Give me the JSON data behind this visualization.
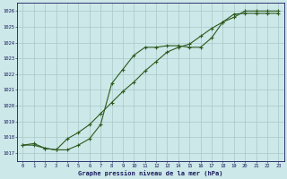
{
  "xlabel": "Graphe pression niveau de la mer (hPa)",
  "ylim": [
    1016.5,
    1026.5
  ],
  "xlim": [
    -0.5,
    23.5
  ],
  "yticks": [
    1017,
    1018,
    1019,
    1020,
    1021,
    1022,
    1023,
    1024,
    1025,
    1026
  ],
  "xticks": [
    0,
    1,
    2,
    3,
    4,
    5,
    6,
    7,
    8,
    9,
    10,
    11,
    12,
    13,
    14,
    15,
    16,
    17,
    18,
    19,
    20,
    21,
    22,
    23
  ],
  "bg_color": "#cce8e8",
  "line_color": "#2d5a1e",
  "grid_color": "#a8c8c8",
  "line1_x": [
    0,
    1,
    2,
    3,
    4,
    5,
    6,
    7,
    8,
    9,
    10,
    11,
    12,
    13,
    14,
    15,
    16,
    17,
    18,
    19,
    20,
    21,
    22,
    23
  ],
  "line1_y": [
    1017.5,
    1017.5,
    1017.3,
    1017.2,
    1017.2,
    1017.5,
    1017.9,
    1018.8,
    1021.4,
    1022.3,
    1023.2,
    1023.7,
    1023.7,
    1023.8,
    1023.8,
    1023.7,
    1023.7,
    1024.3,
    1025.3,
    1025.8,
    1025.85,
    1025.85,
    1025.85,
    1025.85
  ],
  "line2_x": [
    0,
    1,
    2,
    3,
    4,
    5,
    6,
    7,
    8,
    9,
    10,
    11,
    12,
    13,
    14,
    15,
    16,
    17,
    18,
    19,
    20,
    21,
    22,
    23
  ],
  "line2_y": [
    1017.5,
    1017.6,
    1017.3,
    1017.2,
    1017.9,
    1018.3,
    1018.8,
    1019.5,
    1020.2,
    1020.9,
    1021.5,
    1022.2,
    1022.8,
    1023.4,
    1023.7,
    1023.9,
    1024.4,
    1024.9,
    1025.3,
    1025.6,
    1026.0,
    1026.0,
    1026.0,
    1026.0
  ]
}
